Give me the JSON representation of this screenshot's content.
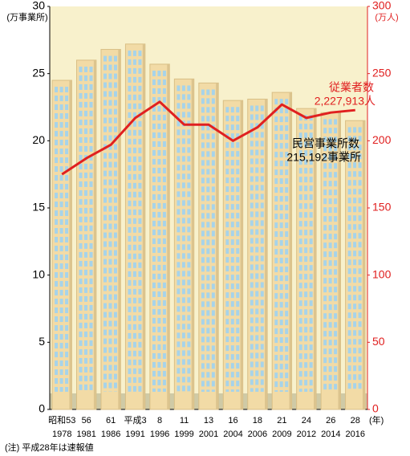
{
  "chart_data": {
    "type": "bar_line",
    "y_unit": "(万事業所)",
    "y2_unit": "(万人)",
    "x_unit": "(年)",
    "note": "(注) 平成28年は速報値",
    "era_labels": [
      "昭和53",
      "56",
      "61",
      "平成3",
      "8",
      "11",
      "13",
      "16",
      "18",
      "21",
      "24",
      "26",
      "28"
    ],
    "categories": [
      "1978",
      "1981",
      "1986",
      "1991",
      "1996",
      "1999",
      "2001",
      "2004",
      "2006",
      "2009",
      "2012",
      "2014",
      "2016"
    ],
    "series": [
      {
        "name": "民営事業所数",
        "value_label": "215,192事業所",
        "type": "bar",
        "axis": "y",
        "color": "#f2dba6",
        "values": [
          24.5,
          26.0,
          26.8,
          27.2,
          25.7,
          24.6,
          24.3,
          23.0,
          23.1,
          23.6,
          22.4,
          22.1,
          21.5
        ]
      },
      {
        "name": "従業者数",
        "value_label": "2,227,913人",
        "type": "line",
        "axis": "y2",
        "color": "#e02020",
        "values": [
          175,
          187,
          197,
          217,
          229,
          212,
          212,
          200,
          210,
          227,
          217,
          221,
          222.8
        ]
      }
    ],
    "ylim": [
      0,
      30
    ],
    "yticks": [
      0,
      5,
      10,
      15,
      20,
      25,
      30
    ],
    "y2lim": [
      0,
      300
    ],
    "y2ticks": [
      0,
      50,
      100,
      150,
      200,
      250,
      300
    ]
  }
}
